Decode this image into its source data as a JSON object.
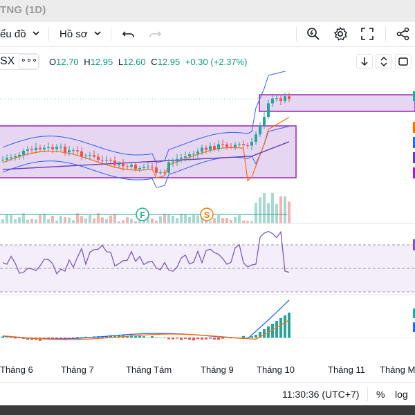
{
  "window": {
    "title": "TNG (1D)"
  },
  "toolbar": {
    "chart_type_label": "ểu đồ",
    "profile_label": "Hồ sơ"
  },
  "legend": {
    "symbol": "SX",
    "more": "∘∘∘",
    "open_key": "O",
    "open": "12.70",
    "high_key": "H",
    "high": "12.95",
    "low_key": "L",
    "low": "12.60",
    "close_key": "C",
    "close": "12.95",
    "change": "+0.30 (+2.37%)"
  },
  "indicators": {
    "flag_f": "F",
    "flag_s": "S"
  },
  "time_axis": [
    "Tháng 6",
    "Tháng 7",
    "Tháng Tám",
    "Tháng 9",
    "Tháng 10",
    "Tháng 11",
    "Tháng M"
  ],
  "status": {
    "time": "11:30:36 (UTC+7)",
    "percent": "%",
    "log": "log"
  },
  "colors": {
    "up": "#26a69a",
    "down": "#ef5350",
    "zone_fill": "#e6d6f2",
    "zone_border": "#9c27b0",
    "band": "#2962ff",
    "ma_fast": "#ff6d00",
    "ma_slow": "#673ab7",
    "rsi": "#7e57c2"
  }
}
